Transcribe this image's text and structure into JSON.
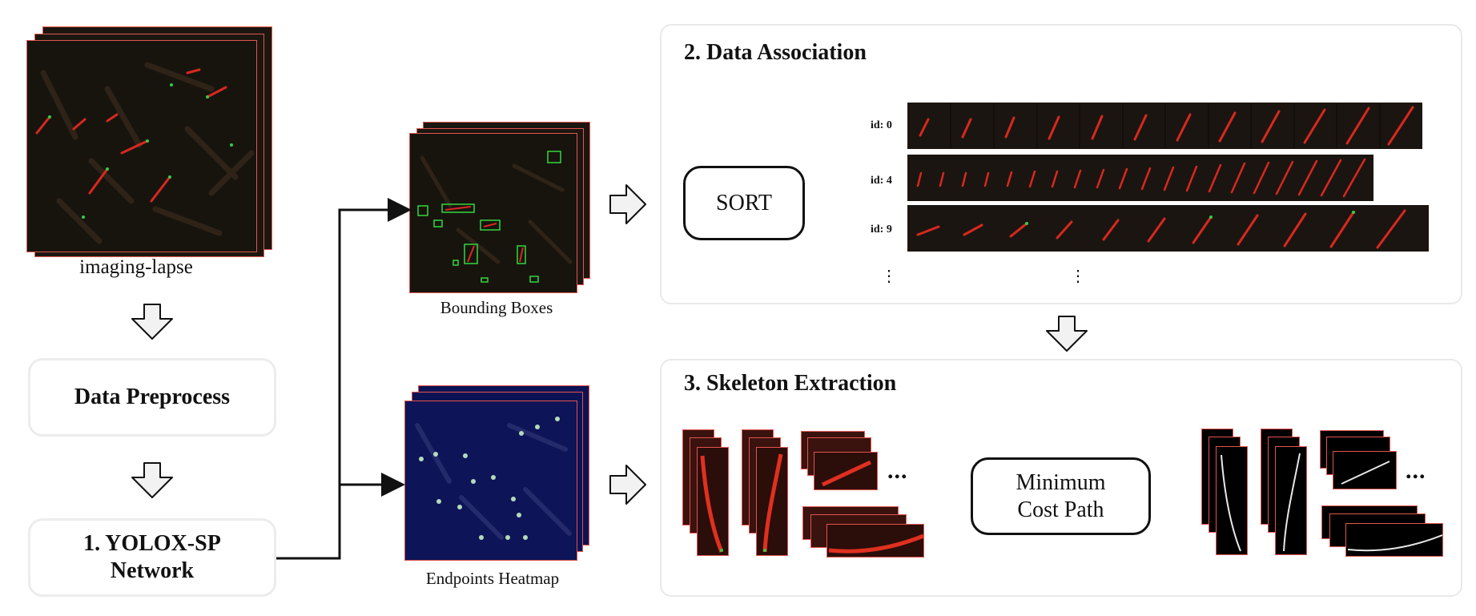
{
  "left_column": {
    "imaging_label": "imaging-lapse",
    "preprocess_label": "Data Preprocess",
    "network_label_line1": "1. YOLOX-SP",
    "network_label_line2": "Network"
  },
  "middle_column": {
    "bbox_label": "Bounding Boxes",
    "heatmap_label": "Endpoints Heatmap"
  },
  "association_panel": {
    "title": "2. Data Association",
    "sort_label": "SORT",
    "tracks": [
      {
        "id_label": "id: 0"
      },
      {
        "id_label": "id: 4"
      },
      {
        "id_label": "id: 9"
      }
    ],
    "more_marker": "⋮"
  },
  "skeleton_panel": {
    "title": "3. Skeleton Extraction",
    "mcp_line1": "Minimum",
    "mcp_line2": "Cost Path",
    "more_marker": "..."
  },
  "colors": {
    "frame_border": "#e2554f",
    "microscopy_bg": "#1a1610",
    "heatmap_bg": "#0c1354",
    "box_border": "#e9e9e9"
  }
}
